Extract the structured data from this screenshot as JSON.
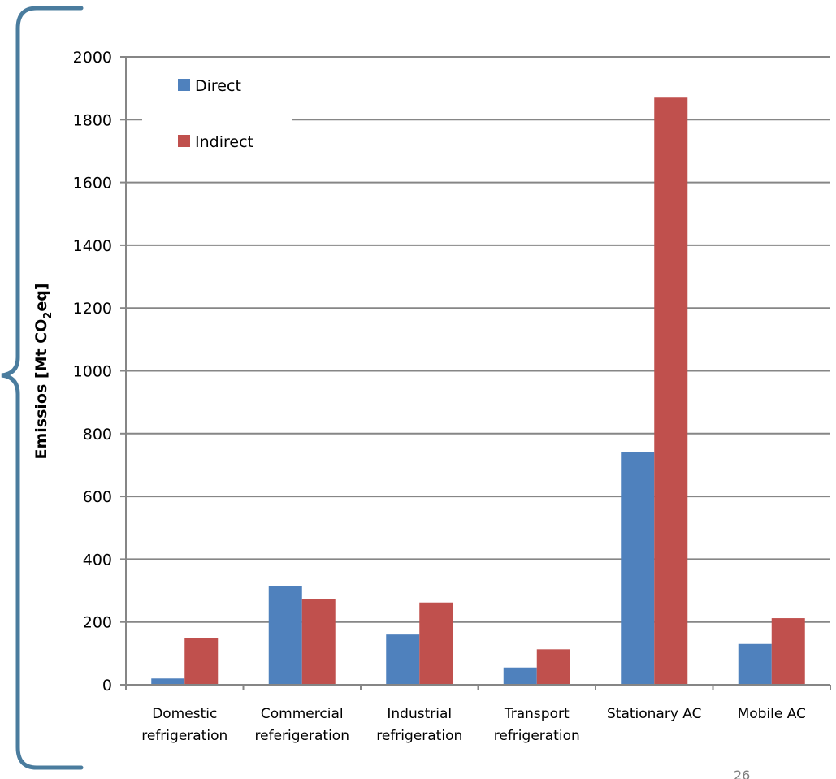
{
  "chart_data": {
    "type": "bar",
    "categories": [
      [
        "Domestic",
        "refrigeration"
      ],
      [
        "Commercial",
        "referigeration"
      ],
      [
        "Industrial",
        "refrigeration"
      ],
      [
        "Transport",
        "refrigeration"
      ],
      [
        "Stationary AC"
      ],
      [
        "Mobile AC"
      ]
    ],
    "series": [
      {
        "name": "Direct",
        "color": "#4f81bd",
        "values": [
          20,
          315,
          160,
          55,
          740,
          130
        ]
      },
      {
        "name": "Indirect",
        "color": "#c0504d",
        "values": [
          150,
          272,
          262,
          113,
          1870,
          212
        ]
      }
    ],
    "ylabel": {
      "prefix": "Emissios [Mt CO",
      "sub": "2",
      "suffix": "eq]"
    },
    "ylim": [
      0,
      2000
    ],
    "yticks": [
      0,
      200,
      400,
      600,
      800,
      1000,
      1200,
      1400,
      1600,
      1800,
      2000
    ],
    "grid": true,
    "legend_position": "top-left"
  },
  "page_number": "26"
}
